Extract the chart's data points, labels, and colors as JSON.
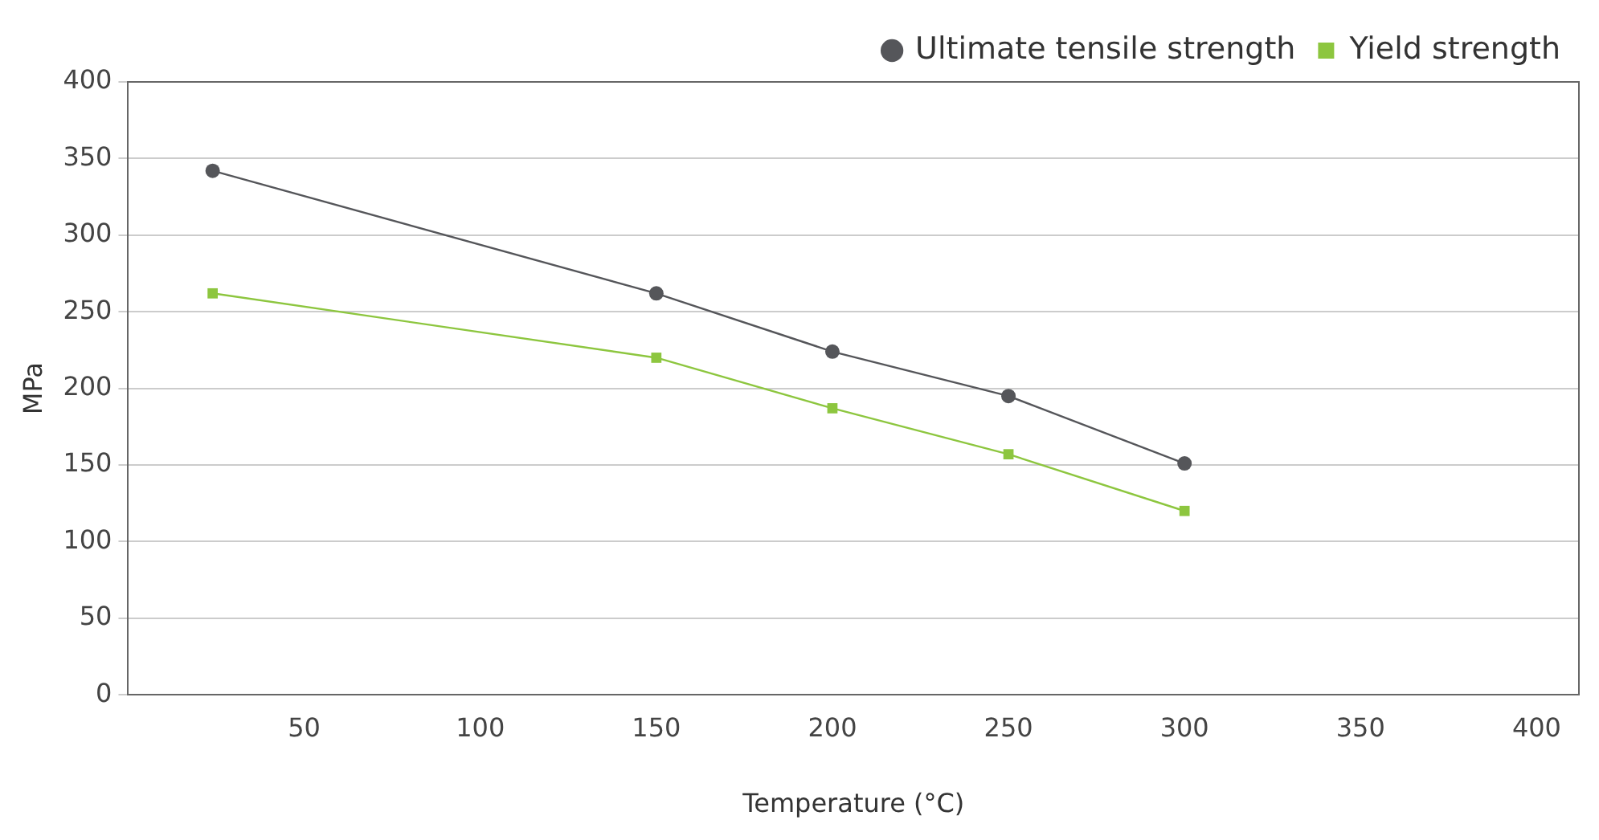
{
  "chart_data": {
    "type": "line",
    "xlabel": "Temperature (°C)",
    "ylabel": "MPa",
    "xlim": [
      0,
      412
    ],
    "xticks": [
      50,
      100,
      150,
      200,
      250,
      300,
      350,
      400
    ],
    "ylim": [
      0,
      400
    ],
    "yticks": [
      0,
      50,
      100,
      150,
      200,
      250,
      300,
      350,
      400
    ],
    "grid": "y",
    "legend": "top right",
    "line_style": "solid",
    "series": [
      {
        "name": "Ultimate tensile strength",
        "color": "#55565a",
        "marker": "circle",
        "x": [
          24,
          150,
          200,
          250,
          300
        ],
        "values": [
          342,
          262,
          224,
          195,
          151
        ]
      },
      {
        "name": "Yield strength",
        "color": "#8dc63f",
        "marker": "square",
        "x": [
          24,
          150,
          200,
          250,
          300
        ],
        "values": [
          262,
          220,
          187,
          157,
          120
        ]
      }
    ]
  }
}
